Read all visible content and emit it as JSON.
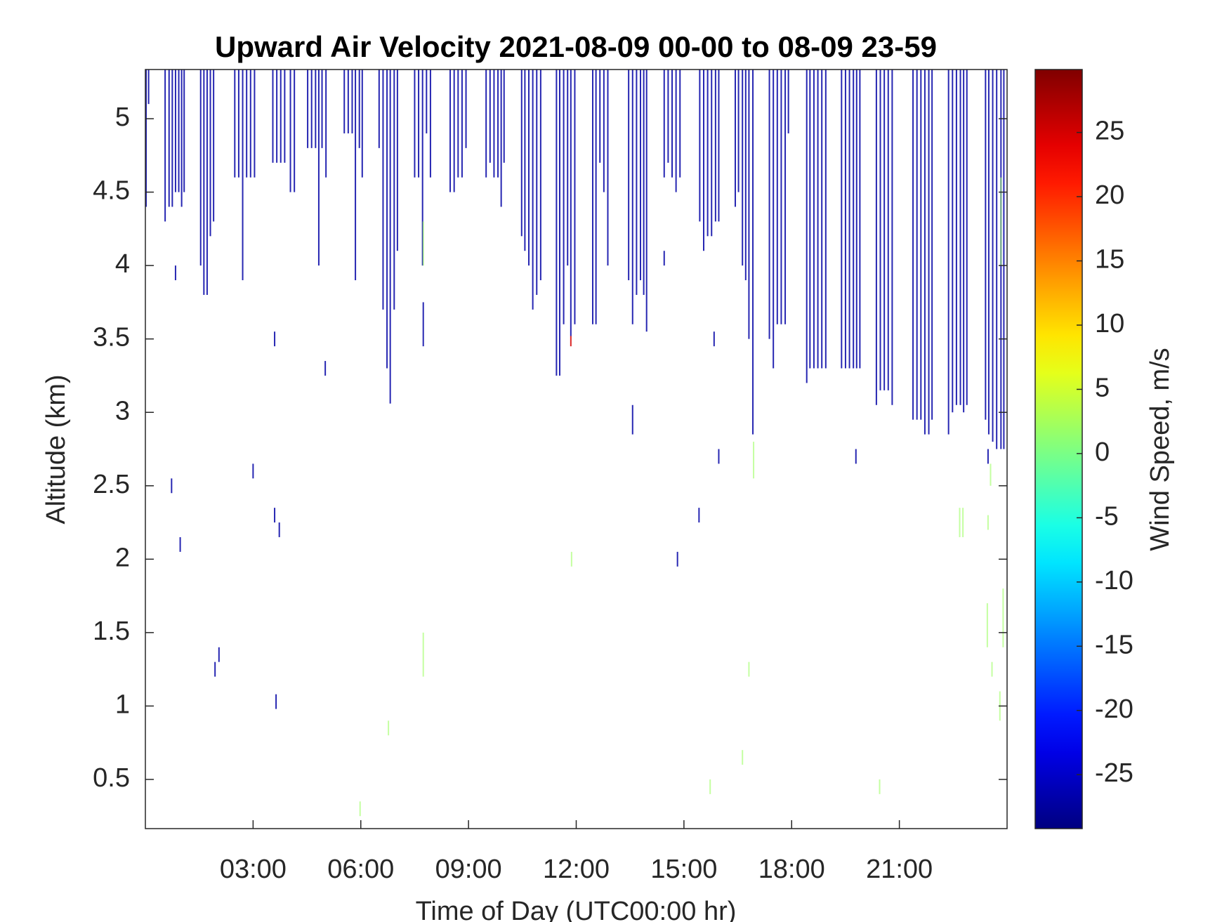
{
  "chart_data": {
    "type": "time-height",
    "title": "Upward Air Velocity 2021-08-09 00-00 to 08-09 23-59",
    "xlabel": "Time of Day (UTC00:00 hr)",
    "ylabel": "Altitude (km)",
    "colorbar_label": "Wind Speed, m/s",
    "colormap": "jet",
    "xlim": [
      0,
      24
    ],
    "xticks": [
      {
        "value": 3,
        "label": "03:00"
      },
      {
        "value": 6,
        "label": "06:00"
      },
      {
        "value": 9,
        "label": "09:00"
      },
      {
        "value": 12,
        "label": "12:00"
      },
      {
        "value": 15,
        "label": "15:00"
      },
      {
        "value": 18,
        "label": "18:00"
      },
      {
        "value": 21,
        "label": "21:00"
      }
    ],
    "ylim": [
      0.165,
      5.335
    ],
    "yticks": [
      0.5,
      1,
      1.5,
      2,
      2.5,
      3,
      3.5,
      4,
      4.5,
      5
    ],
    "clim": [
      -29.2,
      29.9
    ],
    "cticks": [
      -25,
      -20,
      -15,
      -10,
      -5,
      0,
      5,
      10,
      15,
      20,
      25
    ],
    "streaks": [
      [
        0.02,
        4.4,
        5.335,
        -27
      ],
      [
        0.09,
        5.1,
        5.335,
        -27
      ],
      [
        0.55,
        4.3,
        5.335,
        -27
      ],
      [
        0.66,
        4.4,
        5.335,
        -27
      ],
      [
        0.75,
        4.4,
        5.335,
        -27
      ],
      [
        0.84,
        4.5,
        5.335,
        -27
      ],
      [
        0.93,
        4.5,
        5.335,
        -27
      ],
      [
        1.01,
        4.4,
        5.335,
        -27
      ],
      [
        1.08,
        4.5,
        5.335,
        -27
      ],
      [
        1.54,
        4.0,
        5.335,
        -27
      ],
      [
        1.63,
        3.8,
        5.335,
        -27
      ],
      [
        1.72,
        3.8,
        5.335,
        -27
      ],
      [
        1.81,
        4.2,
        5.335,
        -27
      ],
      [
        1.9,
        4.3,
        5.335,
        -27
      ],
      [
        2.49,
        4.6,
        5.335,
        -27
      ],
      [
        2.6,
        4.6,
        5.335,
        -27
      ],
      [
        2.71,
        3.9,
        5.335,
        -27
      ],
      [
        2.82,
        4.6,
        5.335,
        -27
      ],
      [
        2.93,
        4.6,
        5.335,
        -27
      ],
      [
        3.04,
        4.6,
        5.335,
        -27
      ],
      [
        3.55,
        4.7,
        5.335,
        -27
      ],
      [
        3.66,
        4.7,
        5.335,
        -27
      ],
      [
        3.77,
        4.7,
        5.335,
        -27
      ],
      [
        3.88,
        4.7,
        5.335,
        -27
      ],
      [
        4.04,
        4.5,
        5.335,
        -27
      ],
      [
        4.15,
        4.5,
        5.335,
        -27
      ],
      [
        4.52,
        4.8,
        5.335,
        -27
      ],
      [
        4.63,
        4.8,
        5.335,
        -27
      ],
      [
        4.74,
        4.8,
        5.335,
        -27
      ],
      [
        4.83,
        4.0,
        5.335,
        -27
      ],
      [
        4.92,
        4.8,
        5.335,
        -27
      ],
      [
        5.03,
        4.6,
        5.335,
        -27
      ],
      [
        5.54,
        4.9,
        5.335,
        -27
      ],
      [
        5.65,
        4.9,
        5.335,
        -27
      ],
      [
        5.76,
        4.9,
        5.335,
        -27
      ],
      [
        5.85,
        3.9,
        5.335,
        -27
      ],
      [
        5.96,
        4.8,
        5.335,
        -27
      ],
      [
        6.04,
        4.6,
        5.335,
        -27
      ],
      [
        6.51,
        4.8,
        5.335,
        -27
      ],
      [
        6.62,
        3.7,
        5.335,
        -27
      ],
      [
        6.73,
        3.3,
        5.335,
        -27
      ],
      [
        6.82,
        3.06,
        5.335,
        -27
      ],
      [
        6.93,
        3.7,
        5.335,
        -27
      ],
      [
        7.02,
        4.1,
        5.335,
        -27
      ],
      [
        7.5,
        4.6,
        5.335,
        -27
      ],
      [
        7.61,
        4.6,
        5.335,
        -27
      ],
      [
        7.72,
        4.0,
        5.335,
        -27
      ],
      [
        7.83,
        4.9,
        5.335,
        -27
      ],
      [
        7.94,
        4.6,
        5.335,
        -27
      ],
      [
        8.49,
        4.5,
        5.335,
        -27
      ],
      [
        8.6,
        4.5,
        5.335,
        -27
      ],
      [
        8.71,
        4.6,
        5.335,
        -27
      ],
      [
        8.82,
        4.6,
        5.335,
        -27
      ],
      [
        8.93,
        4.8,
        5.335,
        -27
      ],
      [
        9.49,
        4.6,
        5.335,
        -27
      ],
      [
        9.6,
        4.7,
        5.335,
        -27
      ],
      [
        9.71,
        4.6,
        5.335,
        -27
      ],
      [
        9.82,
        4.6,
        5.335,
        -27
      ],
      [
        9.91,
        4.4,
        5.335,
        -27
      ],
      [
        9.99,
        4.7,
        5.335,
        -27
      ],
      [
        10.48,
        4.2,
        5.335,
        -27
      ],
      [
        10.57,
        4.1,
        5.335,
        -27
      ],
      [
        10.68,
        4.0,
        5.335,
        -27
      ],
      [
        10.79,
        3.7,
        5.335,
        -27
      ],
      [
        10.9,
        3.8,
        5.335,
        -27
      ],
      [
        11.01,
        3.9,
        5.335,
        -27
      ],
      [
        11.45,
        3.25,
        5.335,
        -27
      ],
      [
        11.54,
        3.25,
        5.335,
        -27
      ],
      [
        11.65,
        3.6,
        5.335,
        -27
      ],
      [
        11.76,
        4.0,
        5.335,
        -27
      ],
      [
        11.85,
        3.52,
        5.335,
        -27
      ],
      [
        11.96,
        3.6,
        5.335,
        -27
      ],
      [
        12.46,
        3.6,
        5.335,
        -27
      ],
      [
        12.55,
        3.6,
        5.335,
        -27
      ],
      [
        12.66,
        4.7,
        5.335,
        -27
      ],
      [
        12.77,
        4.5,
        5.335,
        -27
      ],
      [
        12.88,
        4.0,
        5.335,
        -27
      ],
      [
        13.46,
        3.9,
        5.335,
        -27
      ],
      [
        13.57,
        3.6,
        5.335,
        -27
      ],
      [
        13.68,
        3.8,
        5.335,
        -27
      ],
      [
        13.79,
        3.9,
        5.335,
        -27
      ],
      [
        13.88,
        3.8,
        5.335,
        -27
      ],
      [
        13.96,
        3.55,
        5.335,
        -27
      ],
      [
        14.45,
        4.6,
        5.335,
        -27
      ],
      [
        14.56,
        4.7,
        5.335,
        -27
      ],
      [
        14.67,
        4.6,
        5.335,
        -27
      ],
      [
        14.78,
        4.5,
        5.335,
        -27
      ],
      [
        14.89,
        4.6,
        5.335,
        -27
      ],
      [
        15.44,
        4.3,
        5.335,
        -27
      ],
      [
        15.55,
        4.1,
        5.335,
        -27
      ],
      [
        15.66,
        4.2,
        5.335,
        -27
      ],
      [
        15.77,
        4.2,
        5.335,
        -27
      ],
      [
        15.88,
        4.3,
        5.335,
        -27
      ],
      [
        15.97,
        4.3,
        5.335,
        -27
      ],
      [
        16.43,
        4.4,
        5.335,
        -27
      ],
      [
        16.52,
        4.5,
        5.335,
        -27
      ],
      [
        16.63,
        4.0,
        5.335,
        -27
      ],
      [
        16.72,
        3.9,
        5.335,
        -27
      ],
      [
        16.81,
        3.5,
        5.335,
        -27
      ],
      [
        16.92,
        2.85,
        5.335,
        -27
      ],
      [
        17.38,
        3.5,
        5.335,
        -27
      ],
      [
        17.49,
        3.3,
        5.335,
        -27
      ],
      [
        17.6,
        3.6,
        5.335,
        -27
      ],
      [
        17.71,
        3.6,
        5.335,
        -27
      ],
      [
        17.82,
        3.6,
        5.335,
        -27
      ],
      [
        17.91,
        4.9,
        5.335,
        -27
      ],
      [
        18.42,
        3.2,
        5.335,
        -27
      ],
      [
        18.51,
        3.3,
        5.335,
        -27
      ],
      [
        18.62,
        3.3,
        5.335,
        -27
      ],
      [
        18.73,
        3.3,
        5.335,
        -27
      ],
      [
        18.84,
        3.3,
        5.335,
        -27
      ],
      [
        18.95,
        3.3,
        5.335,
        -27
      ],
      [
        19.39,
        3.3,
        5.335,
        -27
      ],
      [
        19.5,
        3.3,
        5.335,
        -27
      ],
      [
        19.61,
        3.3,
        5.335,
        -27
      ],
      [
        19.72,
        3.3,
        5.335,
        -27
      ],
      [
        19.81,
        3.3,
        5.335,
        -27
      ],
      [
        19.9,
        3.3,
        5.335,
        -27
      ],
      [
        20.36,
        3.05,
        5.335,
        -27
      ],
      [
        20.47,
        3.15,
        5.335,
        -27
      ],
      [
        20.58,
        3.15,
        5.335,
        -27
      ],
      [
        20.69,
        3.15,
        5.335,
        -27
      ],
      [
        20.8,
        3.05,
        5.335,
        -27
      ],
      [
        21.38,
        2.95,
        5.335,
        -27
      ],
      [
        21.49,
        2.95,
        5.335,
        -27
      ],
      [
        21.6,
        2.95,
        5.335,
        -27
      ],
      [
        21.71,
        2.85,
        5.335,
        -27
      ],
      [
        21.82,
        2.85,
        5.335,
        -27
      ],
      [
        21.91,
        2.95,
        5.335,
        -27
      ],
      [
        22.37,
        2.85,
        5.335,
        -27
      ],
      [
        22.48,
        3.0,
        5.335,
        -27
      ],
      [
        22.59,
        3.05,
        5.335,
        -27
      ],
      [
        22.7,
        3.05,
        5.335,
        -27
      ],
      [
        22.79,
        3.0,
        5.335,
        -27
      ],
      [
        22.88,
        3.05,
        5.335,
        -27
      ],
      [
        23.4,
        2.95,
        5.335,
        -27
      ],
      [
        23.49,
        2.85,
        5.335,
        -27
      ],
      [
        23.6,
        2.8,
        5.335,
        -27
      ],
      [
        23.71,
        2.75,
        5.335,
        -27
      ],
      [
        23.83,
        2.75,
        5.335,
        -27
      ],
      [
        23.91,
        2.75,
        5.335,
        -27
      ],
      [
        0.84,
        3.9,
        4.0,
        -27
      ],
      [
        0.73,
        2.45,
        2.55,
        -27
      ],
      [
        0.97,
        2.05,
        2.15,
        -27
      ],
      [
        1.94,
        1.2,
        1.3,
        -27
      ],
      [
        2.05,
        1.3,
        1.4,
        -27
      ],
      [
        3.0,
        2.55,
        2.65,
        -27
      ],
      [
        3.6,
        3.45,
        3.55,
        -27
      ],
      [
        3.6,
        2.25,
        2.35,
        -27
      ],
      [
        3.73,
        2.15,
        2.25,
        -27
      ],
      [
        3.64,
        0.98,
        1.08,
        -27
      ],
      [
        5.01,
        3.25,
        3.35,
        -27
      ],
      [
        13.57,
        2.85,
        3.05,
        -27
      ],
      [
        15.84,
        3.45,
        3.55,
        -27
      ],
      [
        15.97,
        2.65,
        2.75,
        -27
      ],
      [
        15.42,
        2.25,
        2.35,
        -27
      ],
      [
        14.82,
        1.95,
        2.05,
        -27
      ],
      [
        19.79,
        2.65,
        2.75,
        -27
      ],
      [
        14.45,
        4.0,
        4.1,
        -27
      ],
      [
        7.74,
        3.45,
        3.75,
        -27
      ],
      [
        23.47,
        2.65,
        2.75,
        -27
      ],
      [
        11.85,
        3.45,
        3.52,
        25
      ],
      [
        7.74,
        1.2,
        1.5,
        2
      ],
      [
        7.74,
        4.0,
        4.3,
        2
      ],
      [
        6.77,
        0.8,
        0.9,
        2
      ],
      [
        5.98,
        0.25,
        0.35,
        2
      ],
      [
        11.87,
        1.95,
        2.05,
        2
      ],
      [
        15.73,
        0.4,
        0.5,
        2
      ],
      [
        16.63,
        0.6,
        0.7,
        2
      ],
      [
        16.81,
        1.2,
        1.3,
        2
      ],
      [
        16.94,
        2.55,
        2.8,
        2
      ],
      [
        20.45,
        0.4,
        0.5,
        2
      ],
      [
        22.68,
        2.15,
        2.35,
        2
      ],
      [
        22.77,
        2.15,
        2.35,
        2
      ],
      [
        23.47,
        2.2,
        2.3,
        2
      ],
      [
        23.45,
        1.4,
        1.7,
        2
      ],
      [
        23.58,
        1.2,
        1.3,
        2
      ],
      [
        23.8,
        0.9,
        1.1,
        2
      ],
      [
        23.89,
        1.4,
        1.8,
        2
      ],
      [
        23.83,
        4.0,
        4.6,
        2
      ],
      [
        23.54,
        2.5,
        2.65,
        2
      ]
    ]
  }
}
